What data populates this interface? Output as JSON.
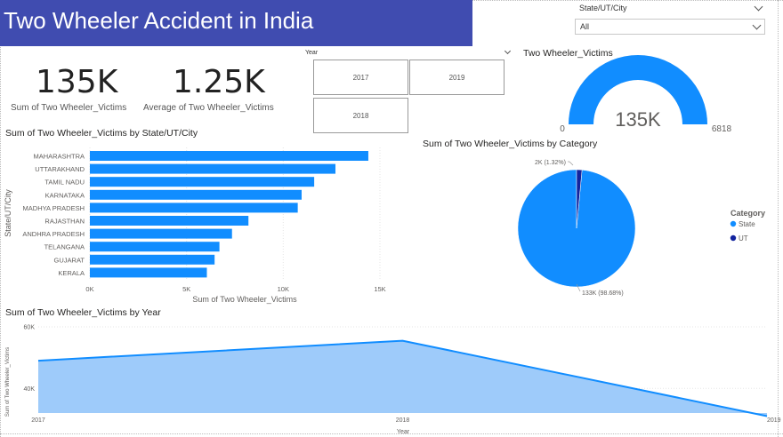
{
  "header": {
    "title": "Two Wheeler Accident in India"
  },
  "slicer_state": {
    "label": "State/UT/City",
    "value": "All"
  },
  "slicer_year": {
    "label": "Year",
    "buttons": [
      "2017",
      "2019",
      "2018"
    ]
  },
  "kpi_sum": {
    "value": "135K",
    "label": "Sum of Two Wheeler_Victims"
  },
  "kpi_avg": {
    "value": "1.25K",
    "label": "Average of Two Wheeler_Victims"
  },
  "gauge": {
    "title": "Two Wheeler_Victims",
    "value_label": "135K",
    "min_label": "0",
    "max_label": "6818",
    "fill_fraction": 1.0
  },
  "bar_chart": {
    "title": "Sum of Two Wheeler_Victims by State/UT/City",
    "ylabel": "State/UT/City",
    "xlabel": "Sum of Two Wheeler_Victims"
  },
  "pie_chart": {
    "title": "Sum of Two Wheeler_Victims by Category",
    "legend_title": "Category"
  },
  "area_chart": {
    "title": "Sum of Two Wheeler_Victims by Year",
    "ylabel": "Sum of Two Wheeler_Victims",
    "xlabel": "Year"
  },
  "colors": {
    "title_bar": "#404cb0",
    "primary": "#118dff",
    "dark": "#12239e",
    "area_fill": "#9ecbfa"
  },
  "chart_data": [
    {
      "type": "bar",
      "categories": [
        "MAHARASHTRA",
        "UTTARAKHAND",
        "TAMIL NADU",
        "KARNATAKA",
        "MADHYA PRADESH",
        "RAJASTHAN",
        "ANDHRA PRADESH",
        "TELANGANA",
        "GUJARAT",
        "KERALA"
      ],
      "values": [
        14400,
        12700,
        11600,
        10950,
        10750,
        8200,
        7350,
        6700,
        6450,
        6050
      ],
      "xlim": [
        0,
        15000
      ],
      "ticks": [
        "0K",
        "5K",
        "10K",
        "15K"
      ],
      "tick_values": [
        0,
        5000,
        10000,
        15000
      ],
      "grid": true
    },
    {
      "type": "pie",
      "categories": [
        "State",
        "UT"
      ],
      "values": [
        133,
        2
      ],
      "labels": [
        "133K (98.68%)",
        "2K (1.32%)"
      ],
      "legend": "right"
    },
    {
      "type": "area",
      "x": [
        "2017",
        "2018",
        "2019"
      ],
      "values": [
        49000,
        55500,
        31000
      ],
      "ylim": [
        32000,
        60000
      ],
      "yticks": [
        "40K",
        "60K"
      ],
      "ytick_values": [
        40000,
        60000
      ]
    }
  ]
}
